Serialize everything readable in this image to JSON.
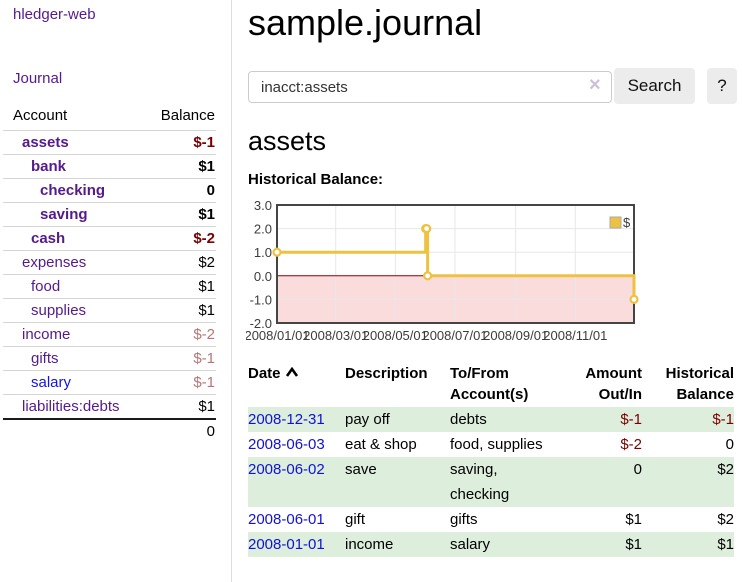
{
  "sidebar": {
    "app_title": "hledger-web",
    "journal_link": "Journal",
    "accounts_header": {
      "account": "Account",
      "balance": "Balance"
    },
    "accounts": [
      {
        "name": "assets",
        "indent": 1,
        "bold": true,
        "balance": "$-1",
        "balance_tone": "strong-negative"
      },
      {
        "name": "bank",
        "indent": 2,
        "bold": true,
        "balance": "$1",
        "balance_tone": "normal"
      },
      {
        "name": "checking",
        "indent": 3,
        "bold": true,
        "balance": "0",
        "balance_tone": "normal"
      },
      {
        "name": "saving",
        "indent": 3,
        "bold": true,
        "balance": "$1",
        "balance_tone": "normal"
      },
      {
        "name": "cash",
        "indent": 2,
        "bold": true,
        "balance": "$-2",
        "balance_tone": "strong-negative"
      },
      {
        "name": "expenses",
        "indent": 1,
        "bold": false,
        "balance": "$2",
        "balance_tone": "normal"
      },
      {
        "name": "food",
        "indent": 2,
        "bold": false,
        "balance": "$1",
        "balance_tone": "normal"
      },
      {
        "name": "supplies",
        "indent": 2,
        "bold": false,
        "balance": "$1",
        "balance_tone": "normal"
      },
      {
        "name": "income",
        "indent": 1,
        "bold": false,
        "balance": "$-2",
        "balance_tone": "soft-negative"
      },
      {
        "name": "gifts",
        "indent": 2,
        "bold": false,
        "balance": "$-1",
        "balance_tone": "soft-negative"
      },
      {
        "name": "salary",
        "indent": 2,
        "bold": false,
        "balance": "$-1",
        "balance_tone": "soft-negative",
        "link_style": "unvisited"
      },
      {
        "name": "liabilities:debts",
        "indent": 1,
        "bold": false,
        "balance": "$1",
        "balance_tone": "normal"
      }
    ],
    "total": "0"
  },
  "main": {
    "title": "sample.journal",
    "search": {
      "query": "inacct:assets",
      "clear_icon": "×",
      "button_label": "Search",
      "help_label": "?"
    },
    "heading": "assets",
    "chart_label": "Historical Balance:"
  },
  "chart_data": {
    "type": "line",
    "title": "Historical Balance:",
    "step": true,
    "series": [
      {
        "name": "$",
        "color": "#edc240",
        "points": [
          [
            "2008-01-01",
            1
          ],
          [
            "2008-06-01",
            2
          ],
          [
            "2008-06-02",
            2
          ],
          [
            "2008-06-03",
            0
          ],
          [
            "2008-12-31",
            -1
          ]
        ]
      }
    ],
    "ylim": [
      -2,
      3
    ],
    "yticks": [
      3.0,
      2.0,
      1.0,
      0.0,
      -1.0,
      -2.0
    ],
    "xticks": [
      "2008/01/01",
      "2008/03/01",
      "2008/05/01",
      "2008/07/01",
      "2008/09/01",
      "2008/11/01"
    ],
    "x_range_days": [
      "2008-01-01",
      "2008-12-31"
    ],
    "negative_fill": "#fbdcdc",
    "zero_line_color": "#8b0000",
    "legend": {
      "label": "$",
      "position": "top-right"
    },
    "grid": true
  },
  "table": {
    "headers": [
      {
        "label": "Date",
        "sorted": "asc",
        "align": "left"
      },
      {
        "label": "Description",
        "align": "left"
      },
      {
        "label": "To/From Account(s)",
        "align": "left"
      },
      {
        "label": "Amount Out/In",
        "align": "right"
      },
      {
        "label": "Historical Balance",
        "align": "right"
      }
    ],
    "rows": [
      {
        "date": "2008-12-31",
        "description": "pay off",
        "accounts": "debts",
        "amount": "$-1",
        "balance": "$-1"
      },
      {
        "date": "2008-06-03",
        "description": "eat & shop",
        "accounts": "food, supplies",
        "amount": "$-2",
        "balance": "0"
      },
      {
        "date": "2008-06-02",
        "description": "save",
        "accounts": "saving,\nchecking",
        "amount": "0",
        "balance": "$2"
      },
      {
        "date": "2008-06-01",
        "description": "gift",
        "accounts": "gifts",
        "amount": "$1",
        "balance": "$2"
      },
      {
        "date": "2008-01-01",
        "description": "income",
        "accounts": "salary",
        "amount": "$1",
        "balance": "$1"
      }
    ]
  }
}
